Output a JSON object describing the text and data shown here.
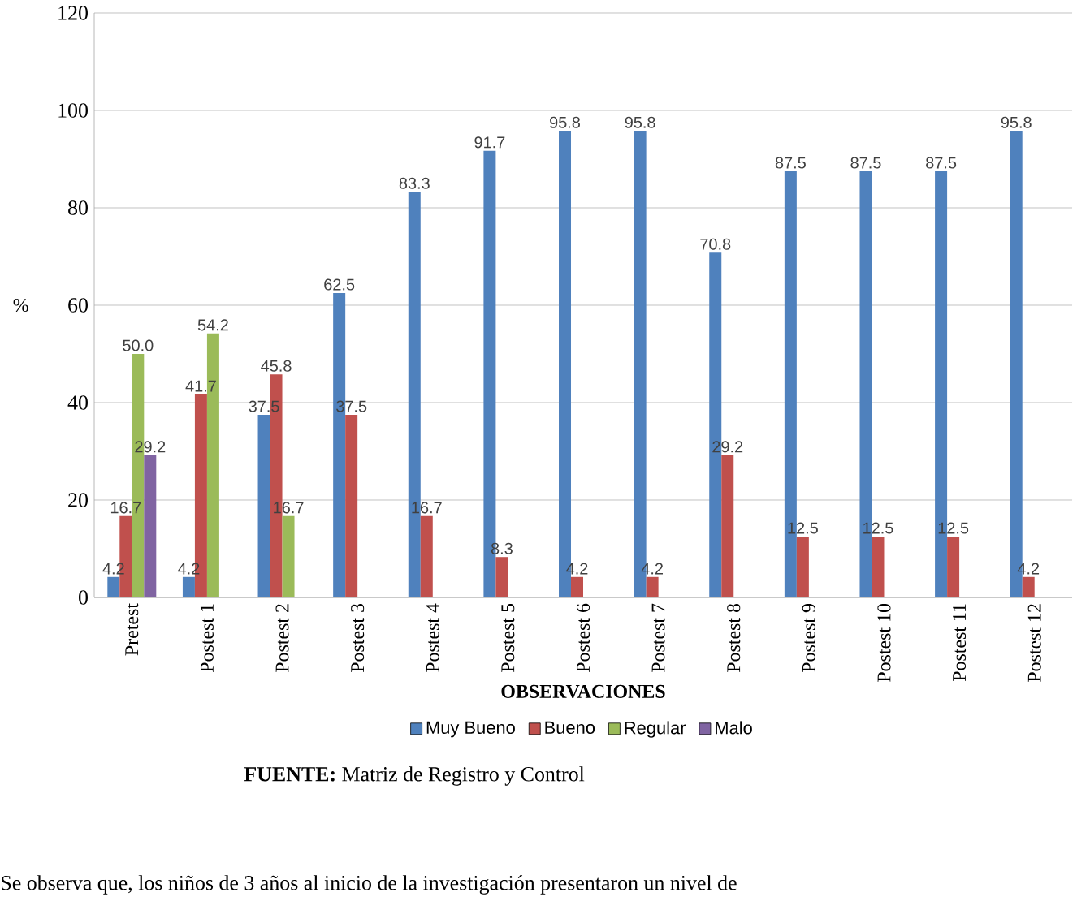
{
  "chart_data": {
    "type": "bar",
    "xlabel": "OBSERVACIONES",
    "ylabel": "%",
    "categories": [
      "Pretest",
      "Postest 1",
      "Postest 2",
      "Postest 3",
      "Postest 4",
      "Postest 5",
      "Postest 6",
      "Postest 7",
      "Postest 8",
      "Postest 9",
      "Postest 10",
      "Postest 11",
      "Postest 12"
    ],
    "series": [
      {
        "name": "Muy Bueno",
        "color": "#4f81bd",
        "values": [
          4.2,
          4.2,
          37.5,
          62.5,
          83.3,
          91.7,
          95.8,
          95.8,
          70.8,
          87.5,
          87.5,
          87.5,
          95.8
        ],
        "value_labels": [
          "4.2",
          "4.2",
          "37.5",
          "62.5",
          "83.3",
          "91.7",
          "95.8",
          "95.8",
          "70.8",
          "87.5",
          "87.5",
          "87.5",
          "95.8"
        ]
      },
      {
        "name": "Bueno",
        "color": "#c0504d",
        "values": [
          16.7,
          41.7,
          45.8,
          37.5,
          16.7,
          8.3,
          4.2,
          4.2,
          29.2,
          12.5,
          12.5,
          12.5,
          4.2
        ],
        "value_labels": [
          "16.7",
          "41.7",
          "45.8",
          "37.5",
          "16.7",
          "8.3",
          "4.2",
          "4.2",
          "29.2",
          "12.5",
          "12.5",
          "12.5",
          "4.2"
        ]
      },
      {
        "name": "Regular",
        "color": "#9bbb59",
        "values": [
          50.0,
          54.2,
          16.7,
          null,
          null,
          null,
          null,
          null,
          null,
          null,
          null,
          null,
          null
        ],
        "value_labels": [
          "50.0",
          "54.2",
          "16.7",
          null,
          null,
          null,
          null,
          null,
          null,
          null,
          null,
          null,
          null
        ]
      },
      {
        "name": "Malo",
        "color": "#8064a2",
        "values": [
          29.2,
          null,
          null,
          null,
          null,
          null,
          null,
          null,
          null,
          null,
          null,
          null,
          null
        ],
        "value_labels": [
          "29.2",
          null,
          null,
          null,
          null,
          null,
          null,
          null,
          null,
          null,
          null,
          null,
          null
        ]
      }
    ],
    "ylim": [
      0,
      120
    ],
    "yticks": [
      0,
      20,
      40,
      60,
      80,
      100,
      120
    ],
    "grid": "y",
    "legend": "bottom",
    "annotations": [
      "**FUENTE:** Matriz de Registro y Control",
      "Se observa que, los niños de 3 años al inicio de la investigación presentaron un nivel de"
    ]
  }
}
